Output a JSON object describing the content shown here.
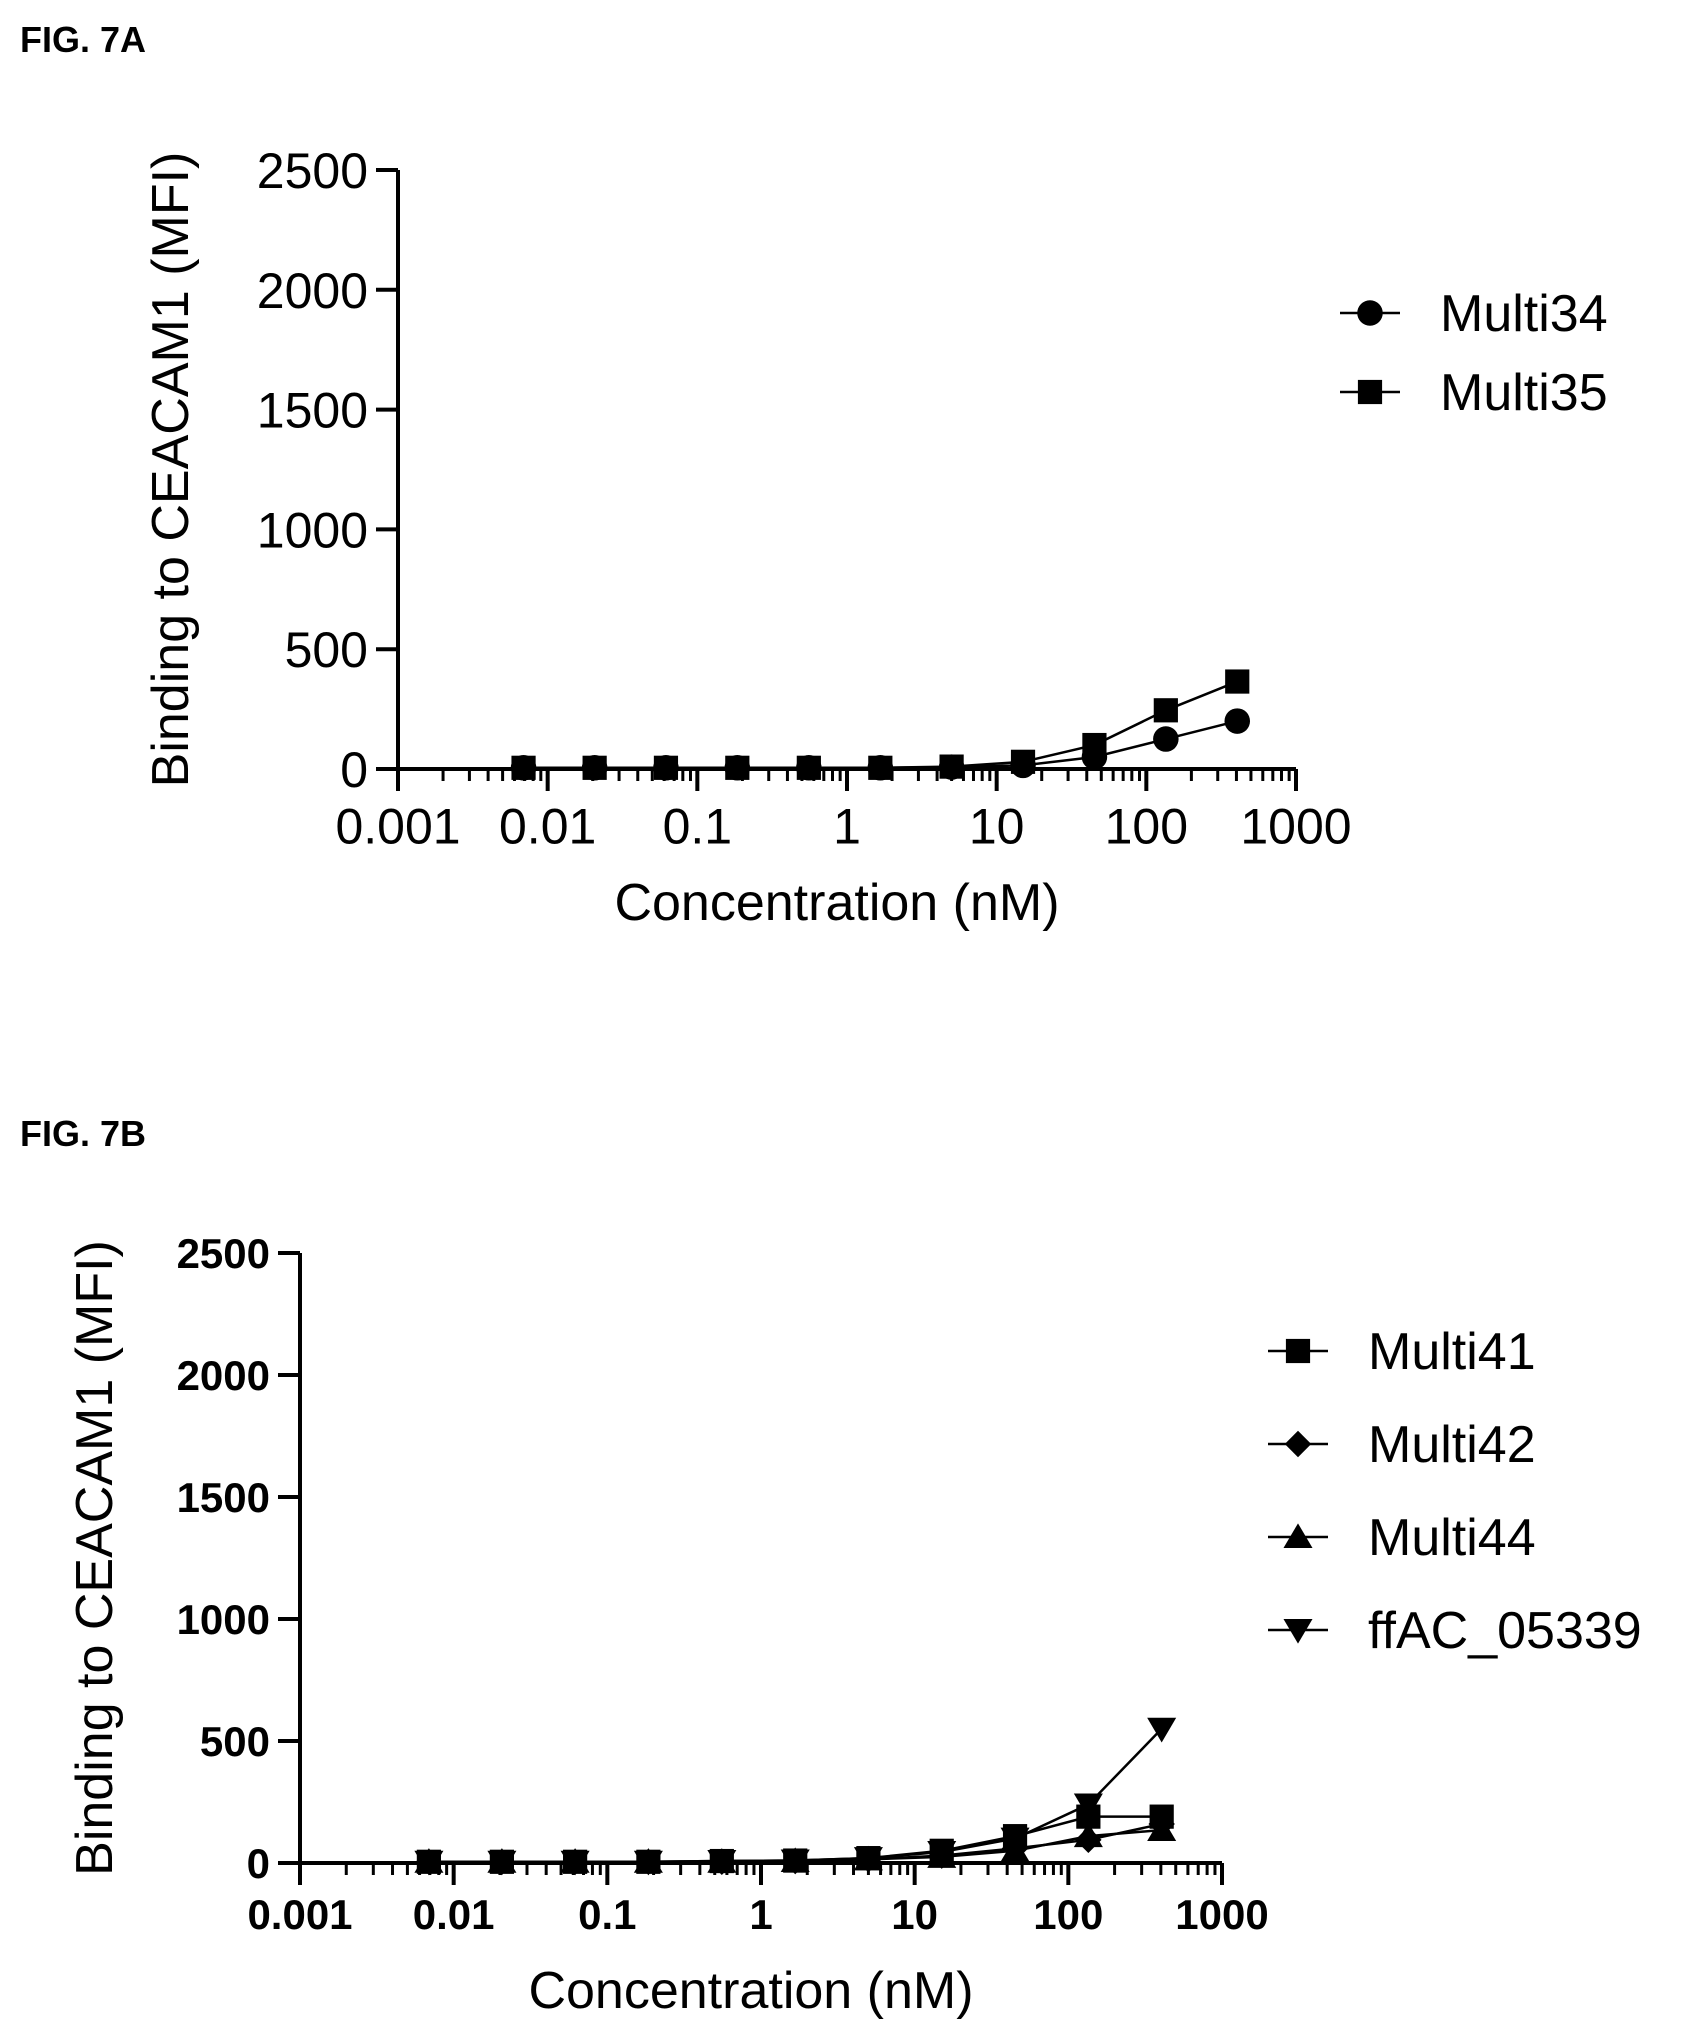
{
  "figures": [
    {
      "label": "FIG. 7A"
    },
    {
      "label": "FIG. 7B"
    }
  ],
  "chart_data": [
    {
      "type": "line",
      "xscale": "log",
      "xlim": [
        0.001,
        1000
      ],
      "ylim": [
        0,
        2500
      ],
      "xticks": [
        "0.001",
        "0.01",
        "0.1",
        "1",
        "10",
        "100",
        "1000"
      ],
      "yticks": [
        "0",
        "500",
        "1000",
        "1500",
        "2000",
        "2500"
      ],
      "xlabel": "Concentration (nM)",
      "ylabel": "Binding to CEACAM1 (MFI)",
      "grid": false,
      "legend_position": "right",
      "x": [
        0.0069,
        0.0206,
        0.0617,
        0.185,
        0.556,
        1.67,
        5,
        15,
        45,
        135,
        405
      ],
      "series": [
        {
          "name": "Multi34",
          "marker": "circle",
          "values": [
            5,
            5,
            5,
            5,
            5,
            5,
            8,
            15,
            50,
            125,
            200
          ]
        },
        {
          "name": "Multi35",
          "marker": "square",
          "values": [
            5,
            5,
            5,
            5,
            5,
            5,
            10,
            30,
            100,
            245,
            365
          ]
        }
      ]
    },
    {
      "type": "line",
      "xscale": "log",
      "xlim": [
        0.001,
        1000
      ],
      "ylim": [
        0,
        2500
      ],
      "xticks": [
        "0.001",
        "0.01",
        "0.1",
        "1",
        "10",
        "100",
        "1000"
      ],
      "yticks": [
        "0",
        "500",
        "1000",
        "1500",
        "2000",
        "2500"
      ],
      "xlabel": "Concentration (nM)",
      "ylabel": "Binding to CEACAM1 (MFI)",
      "grid": false,
      "legend_position": "right",
      "x": [
        0.0069,
        0.0206,
        0.0617,
        0.185,
        0.556,
        1.67,
        5,
        15,
        45,
        135,
        405
      ],
      "series": [
        {
          "name": "Multi41",
          "marker": "square",
          "values": [
            5,
            5,
            5,
            5,
            8,
            10,
            20,
            50,
            110,
            190,
            190
          ]
        },
        {
          "name": "Multi42",
          "marker": "diamond",
          "values": [
            5,
            5,
            5,
            5,
            5,
            8,
            15,
            30,
            60,
            95,
            160
          ]
        },
        {
          "name": "Multi44",
          "marker": "triangle-up",
          "values": [
            5,
            5,
            5,
            5,
            5,
            8,
            15,
            25,
            50,
            110,
            135
          ]
        },
        {
          "name": "ffAC_05339",
          "marker": "triangle-down",
          "values": [
            5,
            5,
            5,
            5,
            8,
            10,
            20,
            45,
            100,
            240,
            550
          ]
        }
      ]
    }
  ]
}
